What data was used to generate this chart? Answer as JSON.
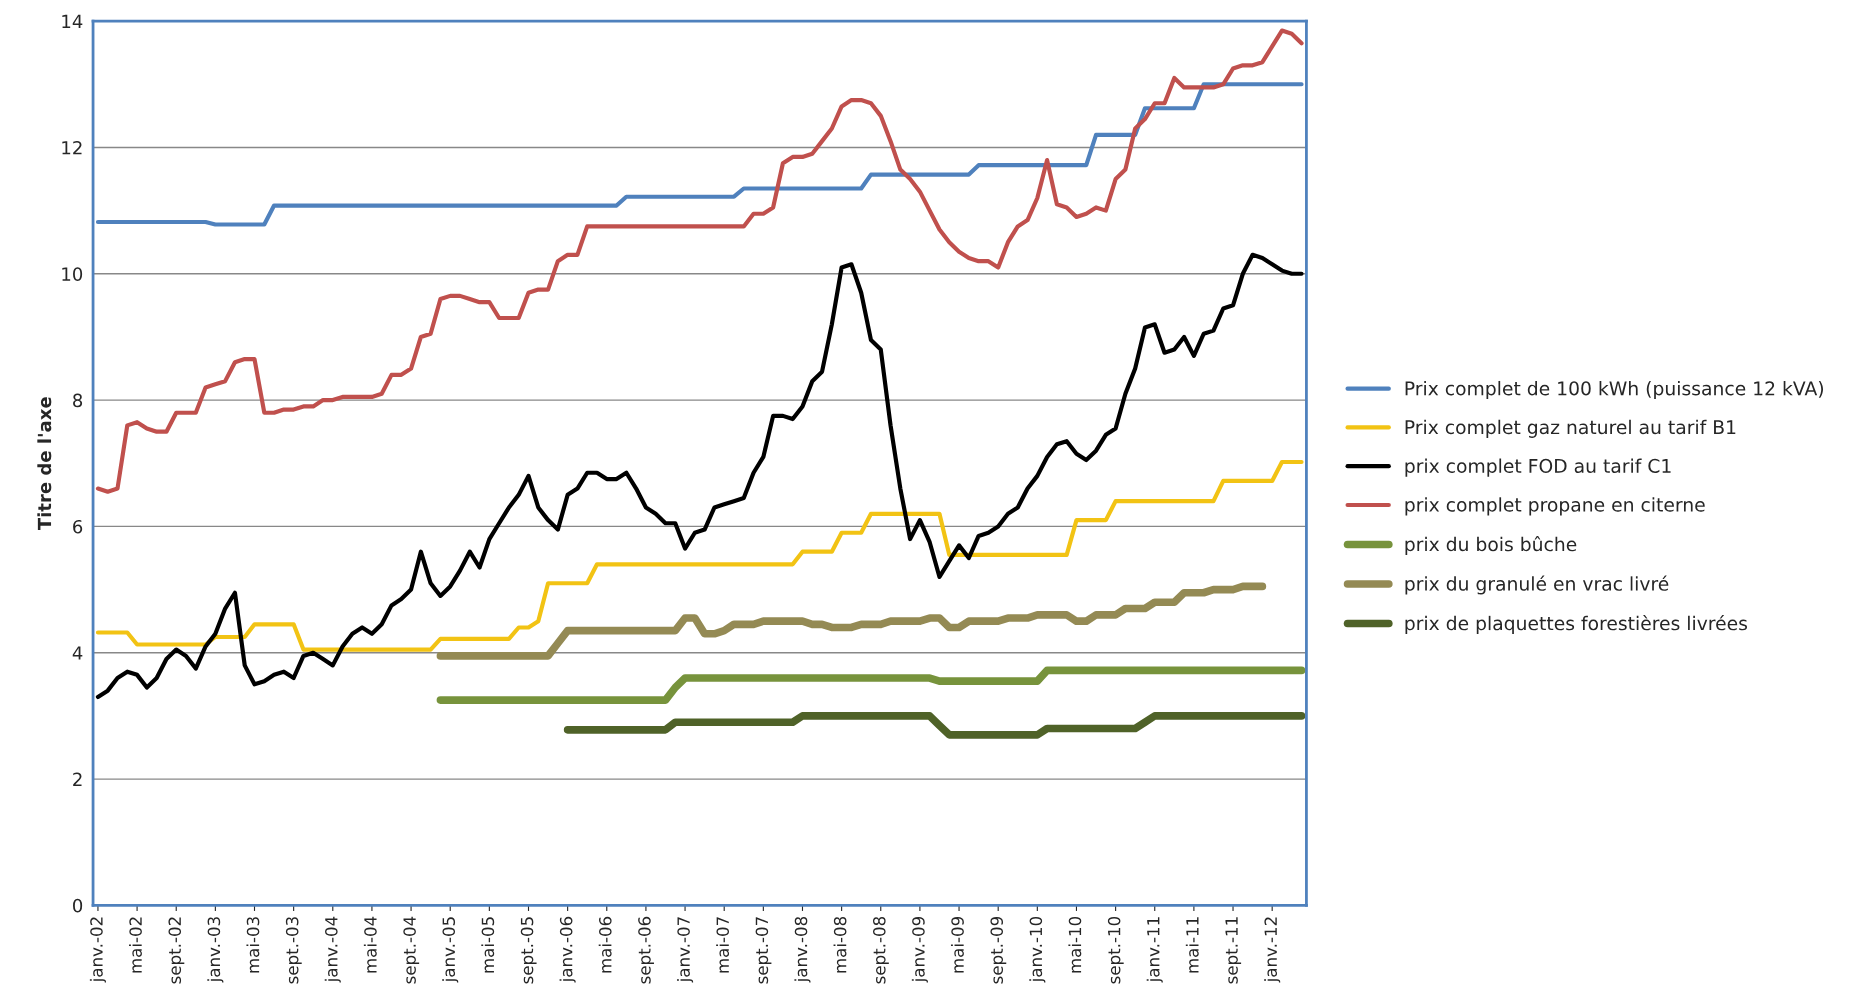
{
  "chart_data": {
    "type": "line",
    "ylabel": "Titre de l'axe",
    "ylim": [
      0,
      14
    ],
    "yticks": [
      0,
      2,
      4,
      6,
      8,
      10,
      12,
      14
    ],
    "grid": "y",
    "legend": "right",
    "categories": [
      "janv.-02",
      null,
      null,
      null,
      "mai-02",
      null,
      null,
      null,
      "sept.-02",
      null,
      null,
      null,
      "janv.-03",
      null,
      null,
      null,
      "mai-03",
      null,
      null,
      null,
      "sept.-03",
      null,
      null,
      null,
      "janv.-04",
      null,
      null,
      null,
      "mai-04",
      null,
      null,
      null,
      "sept.-04",
      null,
      null,
      null,
      "janv.-05",
      null,
      null,
      null,
      "mai-05",
      null,
      null,
      null,
      "sept.-05",
      null,
      null,
      null,
      "janv.-06",
      null,
      null,
      null,
      "mai-06",
      null,
      null,
      null,
      "sept.-06",
      null,
      null,
      null,
      "janv.-07",
      null,
      null,
      null,
      "mai-07",
      null,
      null,
      null,
      "sept.-07",
      null,
      null,
      null,
      "janv.-08",
      null,
      null,
      null,
      "mai-08",
      null,
      null,
      null,
      "sept.-08",
      null,
      null,
      null,
      "janv.-09",
      null,
      null,
      null,
      "mai-09",
      null,
      null,
      null,
      "sept.-09",
      null,
      null,
      null,
      "janv.-10",
      null,
      null,
      null,
      "mai-10",
      null,
      null,
      null,
      "sept.-10",
      null,
      null,
      null,
      "janv.-11",
      null,
      null,
      null,
      "mai-11",
      null,
      null,
      null,
      "sept.-11",
      null,
      null,
      null,
      "janv.-12",
      null,
      null,
      null
    ],
    "series": [
      {
        "name": "Prix complet de 100 kWh (puissance 12 kVA)",
        "color": "#4f81bd",
        "values": [
          10.82,
          10.82,
          10.82,
          10.82,
          10.82,
          10.82,
          10.82,
          10.82,
          10.82,
          10.82,
          10.82,
          10.82,
          10.78,
          10.78,
          10.78,
          10.78,
          10.78,
          10.78,
          11.08,
          11.08,
          11.08,
          11.08,
          11.08,
          11.08,
          11.08,
          11.08,
          11.08,
          11.08,
          11.08,
          11.08,
          11.08,
          11.08,
          11.08,
          11.08,
          11.08,
          11.08,
          11.08,
          11.08,
          11.08,
          11.08,
          11.08,
          11.08,
          11.08,
          11.08,
          11.08,
          11.08,
          11.08,
          11.08,
          11.08,
          11.08,
          11.08,
          11.08,
          11.08,
          11.08,
          11.22,
          11.22,
          11.22,
          11.22,
          11.22,
          11.22,
          11.22,
          11.22,
          11.22,
          11.22,
          11.22,
          11.22,
          11.35,
          11.35,
          11.35,
          11.35,
          11.35,
          11.35,
          11.35,
          11.35,
          11.35,
          11.35,
          11.35,
          11.35,
          11.35,
          11.57,
          11.57,
          11.57,
          11.57,
          11.57,
          11.57,
          11.57,
          11.57,
          11.57,
          11.57,
          11.57,
          11.72,
          11.72,
          11.72,
          11.72,
          11.72,
          11.72,
          11.72,
          11.72,
          11.72,
          11.72,
          11.72,
          11.72,
          12.2,
          12.2,
          12.2,
          12.2,
          12.2,
          12.62,
          12.62,
          12.62,
          12.62,
          12.62,
          12.62,
          13.0,
          13.0,
          13.0,
          13.0,
          13.0,
          13.0,
          13.0,
          13.0,
          13.0,
          13.0,
          13.0
        ]
      },
      {
        "name": "Prix complet gaz naturel au tarif B1",
        "color": "#f2c314",
        "values": [
          4.32,
          4.32,
          4.32,
          4.32,
          4.13,
          4.13,
          4.13,
          4.13,
          4.13,
          4.13,
          4.13,
          4.13,
          4.25,
          4.25,
          4.25,
          4.25,
          4.45,
          4.45,
          4.45,
          4.45,
          4.45,
          4.05,
          4.05,
          4.05,
          4.05,
          4.05,
          4.05,
          4.05,
          4.05,
          4.05,
          4.05,
          4.05,
          4.05,
          4.05,
          4.05,
          4.22,
          4.22,
          4.22,
          4.22,
          4.22,
          4.22,
          4.22,
          4.22,
          4.4,
          4.4,
          4.5,
          5.1,
          5.1,
          5.1,
          5.1,
          5.1,
          5.4,
          5.4,
          5.4,
          5.4,
          5.4,
          5.4,
          5.4,
          5.4,
          5.4,
          5.4,
          5.4,
          5.4,
          5.4,
          5.4,
          5.4,
          5.4,
          5.4,
          5.4,
          5.4,
          5.4,
          5.4,
          5.6,
          5.6,
          5.6,
          5.6,
          5.9,
          5.9,
          5.9,
          6.2,
          6.2,
          6.2,
          6.2,
          6.2,
          6.2,
          6.2,
          6.2,
          5.55,
          5.55,
          5.55,
          5.55,
          5.55,
          5.55,
          5.55,
          5.55,
          5.55,
          5.55,
          5.55,
          5.55,
          5.55,
          6.1,
          6.1,
          6.1,
          6.1,
          6.4,
          6.4,
          6.4,
          6.4,
          6.4,
          6.4,
          6.4,
          6.4,
          6.4,
          6.4,
          6.4,
          6.72,
          6.72,
          6.72,
          6.72,
          6.72,
          6.72,
          7.02,
          7.02,
          7.02
        ]
      },
      {
        "name": "prix complet FOD au tarif C1",
        "color": "#000000",
        "values": [
          3.3,
          3.4,
          3.6,
          3.7,
          3.65,
          3.45,
          3.6,
          3.9,
          4.05,
          3.95,
          3.75,
          4.1,
          4.3,
          4.7,
          4.95,
          3.8,
          3.5,
          3.55,
          3.65,
          3.7,
          3.6,
          3.95,
          4.0,
          3.9,
          3.8,
          4.1,
          4.3,
          4.4,
          4.3,
          4.45,
          4.75,
          4.85,
          5.0,
          5.6,
          5.1,
          4.9,
          5.05,
          5.3,
          5.6,
          5.35,
          5.8,
          6.05,
          6.3,
          6.5,
          6.8,
          6.3,
          6.1,
          5.95,
          6.5,
          6.6,
          6.85,
          6.85,
          6.75,
          6.75,
          6.85,
          6.6,
          6.3,
          6.2,
          6.05,
          6.05,
          5.65,
          5.9,
          5.95,
          6.3,
          6.35,
          6.4,
          6.45,
          6.85,
          7.1,
          7.75,
          7.75,
          7.7,
          7.9,
          8.3,
          8.45,
          9.2,
          10.1,
          10.15,
          9.7,
          8.95,
          8.8,
          7.6,
          6.6,
          5.8,
          6.1,
          5.75,
          5.2,
          5.45,
          5.7,
          5.5,
          5.85,
          5.9,
          6.0,
          6.2,
          6.3,
          6.6,
          6.8,
          7.1,
          7.3,
          7.35,
          7.15,
          7.05,
          7.2,
          7.45,
          7.55,
          8.1,
          8.5,
          9.15,
          9.2,
          8.75,
          8.8,
          9.0,
          8.7,
          9.05,
          9.1,
          9.45,
          9.5,
          10.0,
          10.3,
          10.25,
          10.15,
          10.05,
          10.0,
          10.0
        ]
      },
      {
        "name": "prix complet propane en citerne",
        "color": "#c0504d",
        "values": [
          6.6,
          6.55,
          6.6,
          7.6,
          7.65,
          7.55,
          7.5,
          7.5,
          7.8,
          7.8,
          7.8,
          8.2,
          8.25,
          8.3,
          8.6,
          8.65,
          8.65,
          7.8,
          7.8,
          7.85,
          7.85,
          7.9,
          7.9,
          8.0,
          8.0,
          8.05,
          8.05,
          8.05,
          8.05,
          8.1,
          8.4,
          8.4,
          8.5,
          9.0,
          9.05,
          9.6,
          9.65,
          9.65,
          9.6,
          9.55,
          9.55,
          9.3,
          9.3,
          9.3,
          9.7,
          9.75,
          9.75,
          10.2,
          10.3,
          10.3,
          10.75,
          10.75,
          10.75,
          10.75,
          10.75,
          10.75,
          10.75,
          10.75,
          10.75,
          10.75,
          10.75,
          10.75,
          10.75,
          10.75,
          10.75,
          10.75,
          10.75,
          10.95,
          10.95,
          11.05,
          11.75,
          11.85,
          11.85,
          11.9,
          12.1,
          12.3,
          12.65,
          12.75,
          12.75,
          12.7,
          12.5,
          12.1,
          11.65,
          11.5,
          11.3,
          11.0,
          10.7,
          10.5,
          10.35,
          10.25,
          10.2,
          10.2,
          10.1,
          10.5,
          10.75,
          10.85,
          11.2,
          11.8,
          11.1,
          11.05,
          10.9,
          10.95,
          11.05,
          11.0,
          11.5,
          11.65,
          12.3,
          12.45,
          12.7,
          12.7,
          13.1,
          12.95,
          12.95,
          12.95,
          12.95,
          13.0,
          13.25,
          13.3,
          13.3,
          13.35,
          13.6,
          13.85,
          13.8,
          13.65
        ]
      },
      {
        "name": "prix du bois bûche",
        "color": "#77933c",
        "values": [
          null,
          null,
          null,
          null,
          null,
          null,
          null,
          null,
          null,
          null,
          null,
          null,
          null,
          null,
          null,
          null,
          null,
          null,
          null,
          null,
          null,
          null,
          null,
          null,
          null,
          null,
          null,
          null,
          null,
          null,
          null,
          null,
          null,
          null,
          null,
          3.25,
          3.25,
          3.25,
          3.25,
          3.25,
          3.25,
          3.25,
          3.25,
          3.25,
          3.25,
          3.25,
          3.25,
          3.25,
          3.25,
          3.25,
          3.25,
          3.25,
          3.25,
          3.25,
          3.25,
          3.25,
          3.25,
          3.25,
          3.25,
          3.45,
          3.6,
          3.6,
          3.6,
          3.6,
          3.6,
          3.6,
          3.6,
          3.6,
          3.6,
          3.6,
          3.6,
          3.6,
          3.6,
          3.6,
          3.6,
          3.6,
          3.6,
          3.6,
          3.6,
          3.6,
          3.6,
          3.6,
          3.6,
          3.6,
          3.6,
          3.6,
          3.55,
          3.55,
          3.55,
          3.55,
          3.55,
          3.55,
          3.55,
          3.55,
          3.55,
          3.55,
          3.55,
          3.72,
          3.72,
          3.72,
          3.72,
          3.72,
          3.72,
          3.72,
          3.72,
          3.72,
          3.72,
          3.72,
          3.72,
          3.72,
          3.72,
          3.72,
          3.72,
          3.72,
          3.72,
          3.72,
          3.72,
          3.72,
          3.72,
          3.72,
          3.72,
          3.72,
          3.72,
          3.72
        ]
      },
      {
        "name": "prix du granulé en vrac livré",
        "color": "#948a54",
        "values": [
          null,
          null,
          null,
          null,
          null,
          null,
          null,
          null,
          null,
          null,
          null,
          null,
          null,
          null,
          null,
          null,
          null,
          null,
          null,
          null,
          null,
          null,
          null,
          null,
          null,
          null,
          null,
          null,
          null,
          null,
          null,
          null,
          null,
          null,
          null,
          3.95,
          3.95,
          3.95,
          3.95,
          3.95,
          3.95,
          3.95,
          3.95,
          3.95,
          3.95,
          3.95,
          3.95,
          4.15,
          4.35,
          4.35,
          4.35,
          4.35,
          4.35,
          4.35,
          4.35,
          4.35,
          4.35,
          4.35,
          4.35,
          4.35,
          4.55,
          4.55,
          4.3,
          4.3,
          4.35,
          4.45,
          4.45,
          4.45,
          4.5,
          4.5,
          4.5,
          4.5,
          4.5,
          4.45,
          4.45,
          4.4,
          4.4,
          4.4,
          4.45,
          4.45,
          4.45,
          4.5,
          4.5,
          4.5,
          4.5,
          4.55,
          4.55,
          4.4,
          4.4,
          4.5,
          4.5,
          4.5,
          4.5,
          4.55,
          4.55,
          4.55,
          4.6,
          4.6,
          4.6,
          4.6,
          4.5,
          4.5,
          4.6,
          4.6,
          4.6,
          4.7,
          4.7,
          4.7,
          4.8,
          4.8,
          4.8,
          4.95,
          4.95,
          4.95,
          5.0,
          5.0,
          5.0,
          5.05,
          5.05,
          5.05,
          null,
          null,
          null,
          null
        ]
      },
      {
        "name": "prix de plaquettes forestières livrées",
        "color": "#4f6228",
        "values": [
          null,
          null,
          null,
          null,
          null,
          null,
          null,
          null,
          null,
          null,
          null,
          null,
          null,
          null,
          null,
          null,
          null,
          null,
          null,
          null,
          null,
          null,
          null,
          null,
          null,
          null,
          null,
          null,
          null,
          null,
          null,
          null,
          null,
          null,
          null,
          null,
          null,
          null,
          null,
          null,
          null,
          null,
          null,
          null,
          null,
          null,
          null,
          null,
          2.78,
          2.78,
          2.78,
          2.78,
          2.78,
          2.78,
          2.78,
          2.78,
          2.78,
          2.78,
          2.78,
          2.9,
          2.9,
          2.9,
          2.9,
          2.9,
          2.9,
          2.9,
          2.9,
          2.9,
          2.9,
          2.9,
          2.9,
          2.9,
          3.0,
          3.0,
          3.0,
          3.0,
          3.0,
          3.0,
          3.0,
          3.0,
          3.0,
          3.0,
          3.0,
          3.0,
          3.0,
          3.0,
          2.85,
          2.7,
          2.7,
          2.7,
          2.7,
          2.7,
          2.7,
          2.7,
          2.7,
          2.7,
          2.7,
          2.8,
          2.8,
          2.8,
          2.8,
          2.8,
          2.8,
          2.8,
          2.8,
          2.8,
          2.8,
          2.9,
          3.0,
          3.0,
          3.0,
          3.0,
          3.0,
          3.0,
          3.0,
          3.0,
          3.0,
          3.0,
          3.0,
          3.0,
          3.0,
          3.0,
          3.0,
          3.0
        ]
      }
    ]
  }
}
